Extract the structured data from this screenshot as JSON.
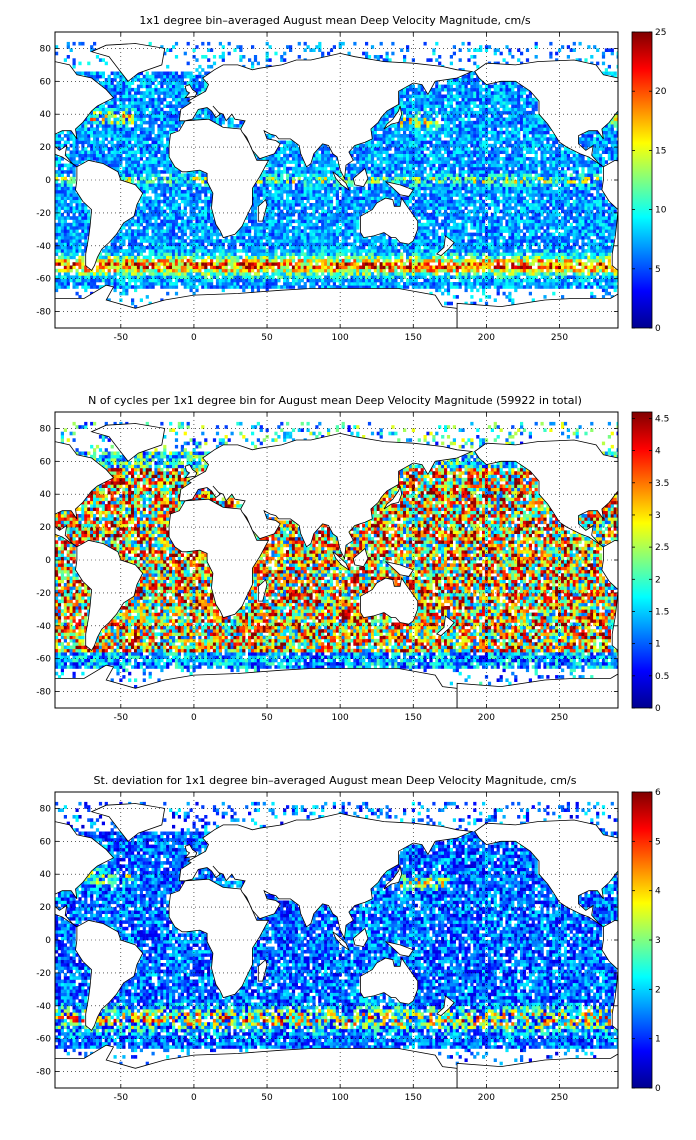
{
  "figure": {
    "background": "#ffffff"
  },
  "chart_data": [
    {
      "type": "heatmap",
      "title": "1x1 degree bin–averaged August mean Deep Velocity Magnitude, cm/s",
      "xlabel": "",
      "ylabel": "",
      "xlim": [
        -95,
        290
      ],
      "ylim": [
        -90,
        90
      ],
      "x_ticks": [
        -50,
        0,
        50,
        100,
        150,
        200,
        250
      ],
      "y_ticks": [
        -80,
        -60,
        -40,
        -20,
        0,
        20,
        40,
        60,
        80
      ],
      "grid": true,
      "colorbar": {
        "min": 0,
        "max": 25,
        "ticks": [
          0,
          5,
          10,
          15,
          20,
          25
        ],
        "colormap": "jet"
      },
      "pattern": "velocity",
      "description_of_field": "bin-averaged deep velocity magnitude over the world ocean; elevated values (15-25 cm/s) along the Antarctic Circumpolar Current, Gulf Stream, Kuroshio and equatorial band"
    },
    {
      "type": "heatmap",
      "title": "N of cycles per 1x1 degree bin for August mean Deep Velocity Magnitude (59922 in total)",
      "xlabel": "",
      "ylabel": "",
      "xlim": [
        -95,
        290
      ],
      "ylim": [
        -90,
        90
      ],
      "x_ticks": [
        -50,
        0,
        50,
        100,
        150,
        200,
        250
      ],
      "y_ticks": [
        -80,
        -60,
        -40,
        -20,
        0,
        20,
        40,
        60,
        80
      ],
      "grid": true,
      "colorbar": {
        "min": 0,
        "max": 4.6,
        "ticks": [
          0,
          0.5,
          1,
          1.5,
          2,
          2.5,
          3,
          3.5,
          4,
          4.5
        ],
        "colormap": "jet"
      },
      "pattern": "counts",
      "total_cycles": 59922
    },
    {
      "type": "heatmap",
      "title": "St. deviation for 1x1 degree bin–averaged August mean Deep Velocity Magnitude, cm/s",
      "xlabel": "",
      "ylabel": "",
      "xlim": [
        -95,
        290
      ],
      "ylim": [
        -90,
        90
      ],
      "x_ticks": [
        -50,
        0,
        50,
        100,
        150,
        200,
        250
      ],
      "y_ticks": [
        -80,
        -60,
        -40,
        -20,
        0,
        20,
        40,
        60,
        80
      ],
      "grid": true,
      "colorbar": {
        "min": 0,
        "max": 6,
        "ticks": [
          0,
          1,
          2,
          3,
          4,
          5,
          6
        ],
        "colormap": "jet"
      },
      "pattern": "std"
    }
  ]
}
